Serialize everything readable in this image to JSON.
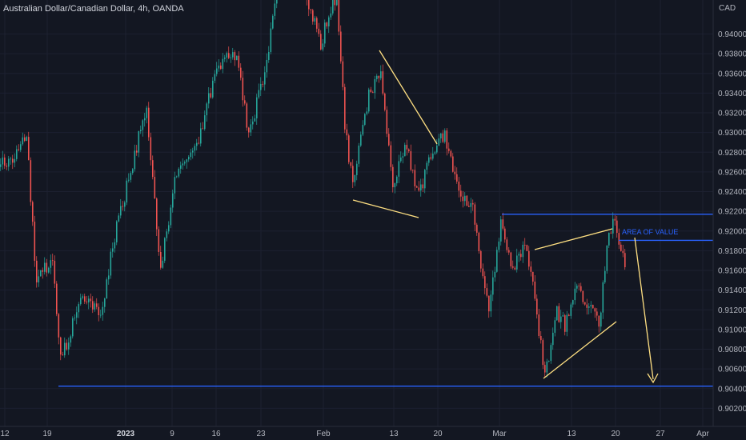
{
  "header": {
    "title": "Australian Dollar/Canadian Dollar, 4h, OANDA",
    "currency": "CAD"
  },
  "colors": {
    "background": "#131722",
    "up": "#26a69a",
    "down": "#ef5350",
    "level_line": "#2962ff",
    "pattern_line": "#ffe082",
    "annotation_text": "#2962ff",
    "axis_text": "#b2b5be"
  },
  "chart_data": {
    "type": "candlestick",
    "x_ticks": [
      "12",
      "19",
      "2023",
      "9",
      "16",
      "23",
      "Feb",
      "13",
      "20",
      "Mar",
      "13",
      "20",
      "27",
      "Apr"
    ],
    "bold_x_ticks": [
      "2023"
    ],
    "y_ticks": [
      "0.94000",
      "0.93800",
      "0.93600",
      "0.93400",
      "0.93200",
      "0.93000",
      "0.92800",
      "0.92600",
      "0.92400",
      "0.92200",
      "0.92000",
      "0.91800",
      "0.91600",
      "0.91400",
      "0.91200",
      "0.91000",
      "0.90800",
      "0.90600",
      "0.90400",
      "0.90200"
    ],
    "ylim": [
      0.9013,
      0.9424
    ],
    "price_path": [
      {
        "x": 0,
        "p": 0.9265
      },
      {
        "x": 22,
        "p": 0.928
      },
      {
        "x": 32,
        "p": 0.9302
      },
      {
        "x": 45,
        "p": 0.9148
      },
      {
        "x": 65,
        "p": 0.9173
      },
      {
        "x": 75,
        "p": 0.9068
      },
      {
        "x": 100,
        "p": 0.913
      },
      {
        "x": 125,
        "p": 0.9115
      },
      {
        "x": 140,
        "p": 0.9186
      },
      {
        "x": 160,
        "p": 0.9253
      },
      {
        "x": 182,
        "p": 0.9328
      },
      {
        "x": 200,
        "p": 0.9163
      },
      {
        "x": 220,
        "p": 0.9262
      },
      {
        "x": 250,
        "p": 0.93
      },
      {
        "x": 270,
        "p": 0.9365
      },
      {
        "x": 295,
        "p": 0.9382
      },
      {
        "x": 310,
        "p": 0.9295
      },
      {
        "x": 330,
        "p": 0.9363
      },
      {
        "x": 345,
        "p": 0.944
      },
      {
        "x": 375,
        "p": 0.946
      },
      {
        "x": 400,
        "p": 0.9392
      },
      {
        "x": 420,
        "p": 0.944
      },
      {
        "x": 430,
        "p": 0.931
      },
      {
        "x": 440,
        "p": 0.9245
      },
      {
        "x": 460,
        "p": 0.934
      },
      {
        "x": 475,
        "p": 0.9362
      },
      {
        "x": 490,
        "p": 0.9238
      },
      {
        "x": 505,
        "p": 0.929
      },
      {
        "x": 522,
        "p": 0.9235
      },
      {
        "x": 540,
        "p": 0.9285
      },
      {
        "x": 555,
        "p": 0.93
      },
      {
        "x": 570,
        "p": 0.9248
      },
      {
        "x": 590,
        "p": 0.922
      },
      {
        "x": 598,
        "p": 0.9175
      },
      {
        "x": 610,
        "p": 0.9125
      },
      {
        "x": 625,
        "p": 0.9205
      },
      {
        "x": 640,
        "p": 0.916
      },
      {
        "x": 655,
        "p": 0.9188
      },
      {
        "x": 665,
        "p": 0.915
      },
      {
        "x": 680,
        "p": 0.905
      },
      {
        "x": 695,
        "p": 0.9118
      },
      {
        "x": 705,
        "p": 0.9105
      },
      {
        "x": 720,
        "p": 0.9145
      },
      {
        "x": 735,
        "p": 0.9125
      },
      {
        "x": 748,
        "p": 0.9105
      },
      {
        "x": 760,
        "p": 0.92
      },
      {
        "x": 767,
        "p": 0.9212
      },
      {
        "x": 775,
        "p": 0.9175
      },
      {
        "x": 782,
        "p": 0.9165
      }
    ],
    "levels": [
      {
        "name": "resistance",
        "price": 0.9217
      },
      {
        "name": "area-of-value",
        "price": 0.91905
      },
      {
        "name": "support",
        "price": 0.90425
      }
    ],
    "annotations": {
      "area_of_value": "AREA OF VALUE"
    }
  }
}
